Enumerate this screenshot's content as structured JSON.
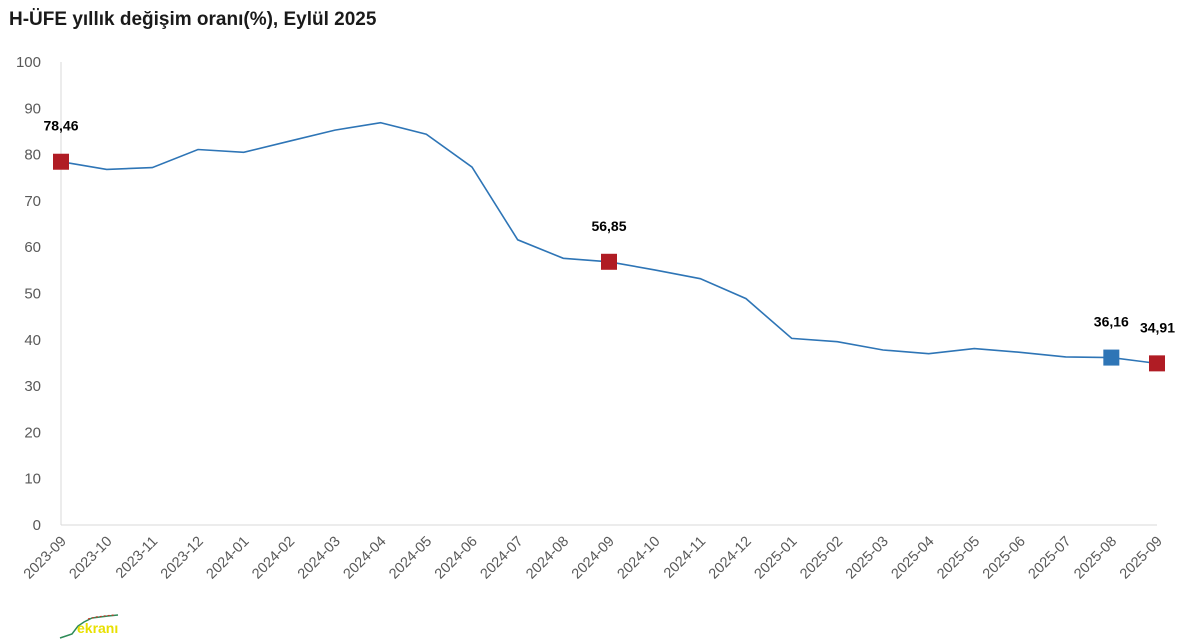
{
  "chart_data": {
    "type": "line",
    "title": "H-ÜFE yıllık değişim oranı(%), Eylül 2025",
    "xlabel": "",
    "ylabel": "",
    "ylim": [
      0,
      100
    ],
    "yticks": [
      0,
      10,
      20,
      30,
      40,
      50,
      60,
      70,
      80,
      90,
      100
    ],
    "grid": false,
    "legend": "none",
    "categories": [
      "2023-09",
      "2023-10",
      "2023-11",
      "2023-12",
      "2024-01",
      "2024-02",
      "2024-03",
      "2024-04",
      "2024-05",
      "2024-06",
      "2024-07",
      "2024-08",
      "2024-09",
      "2024-10",
      "2024-11",
      "2024-12",
      "2025-01",
      "2025-02",
      "2025-03",
      "2025-04",
      "2025-05",
      "2025-06",
      "2025-07",
      "2025-08",
      "2025-09"
    ],
    "series": [
      {
        "values": [
          78.46,
          76.8,
          77.2,
          81.1,
          80.5,
          82.9,
          85.3,
          86.9,
          84.4,
          77.3,
          61.6,
          57.6,
          56.85,
          55.1,
          53.2,
          48.9,
          40.3,
          39.6,
          37.8,
          37.0,
          38.1,
          37.3,
          36.3,
          36.16,
          34.91
        ],
        "color": "#2e75b6"
      }
    ],
    "highlights": [
      {
        "index": 0,
        "label": "78,46",
        "color": "#b01c24"
      },
      {
        "index": 12,
        "label": "56,85",
        "color": "#b01c24"
      },
      {
        "index": 23,
        "label": "36,16",
        "color": "#2e75b6"
      },
      {
        "index": 24,
        "label": "34,91",
        "color": "#b01c24"
      }
    ]
  },
  "watermark": {
    "text": "ekranı",
    "color": "#e8e000"
  }
}
